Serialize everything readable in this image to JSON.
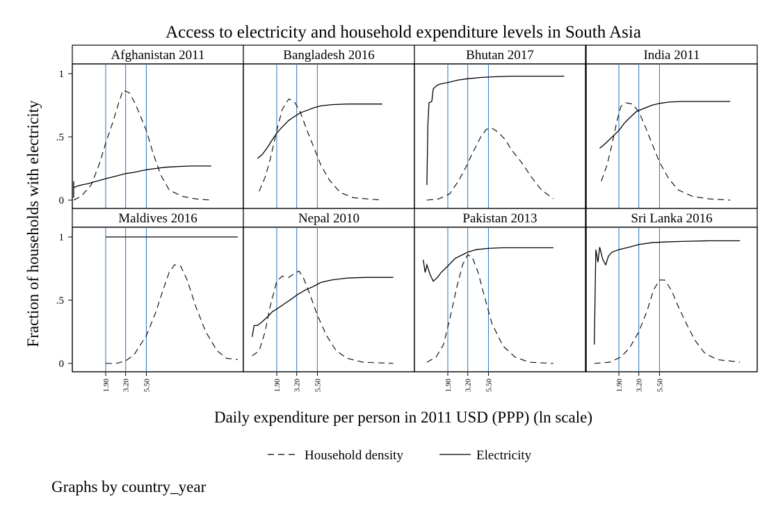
{
  "chart_data": {
    "type": "line",
    "title": "Access to electricity and household expenditure levels in South Asia",
    "xlabel": "Daily expenditure per person in 2011 USD (PPP) (ln scale)",
    "ylabel": "Fraction of households with electricity",
    "x_scale": "ln",
    "ylim": [
      0,
      1
    ],
    "y_ticks": [
      "0",
      ".5",
      "1"
    ],
    "x_ticks": [
      {
        "label": "1.90",
        "value": 1.9
      },
      {
        "label": "3.20",
        "value": 3.2
      },
      {
        "label": "5.50",
        "value": 5.5
      }
    ],
    "reference_lines_x": [
      1.9,
      3.2,
      5.5
    ],
    "reference_line_color": "#3a7fc1",
    "grid": false,
    "legend": {
      "placement": "bottom",
      "entries": [
        {
          "label": "Household density",
          "style": "dashed"
        },
        {
          "label": "Electricity",
          "style": "solid"
        }
      ]
    },
    "note": "Graphs by country_year",
    "panels": [
      {
        "name": "Afghanistan 2011",
        "electricity": [
          [
            0.7,
            0.02
          ],
          [
            0.72,
            0.15
          ],
          [
            0.76,
            0.07
          ],
          [
            0.8,
            0.1
          ],
          [
            0.9,
            0.11
          ],
          [
            1.0,
            0.12
          ],
          [
            1.2,
            0.13
          ],
          [
            1.5,
            0.15
          ],
          [
            1.9,
            0.17
          ],
          [
            2.5,
            0.19
          ],
          [
            3.2,
            0.21
          ],
          [
            4.0,
            0.22
          ],
          [
            5.5,
            0.24
          ],
          [
            7.0,
            0.25
          ],
          [
            9.0,
            0.26
          ],
          [
            12.0,
            0.265
          ],
          [
            18.0,
            0.27
          ],
          [
            25.0,
            0.27
          ],
          [
            30.0,
            0.27
          ]
        ],
        "density": [
          [
            0.7,
            0.0
          ],
          [
            1.0,
            0.03
          ],
          [
            1.3,
            0.12
          ],
          [
            1.6,
            0.28
          ],
          [
            1.9,
            0.45
          ],
          [
            2.3,
            0.62
          ],
          [
            2.7,
            0.78
          ],
          [
            3.0,
            0.87
          ],
          [
            3.5,
            0.85
          ],
          [
            4.0,
            0.78
          ],
          [
            4.5,
            0.7
          ],
          [
            5.5,
            0.55
          ],
          [
            6.5,
            0.38
          ],
          [
            8.0,
            0.2
          ],
          [
            10.0,
            0.08
          ],
          [
            14.0,
            0.03
          ],
          [
            20.0,
            0.01
          ],
          [
            30.0,
            0.0
          ]
        ]
      },
      {
        "name": "Bangladesh 2016",
        "electricity": [
          [
            1.15,
            0.33
          ],
          [
            1.3,
            0.36
          ],
          [
            1.5,
            0.42
          ],
          [
            1.7,
            0.48
          ],
          [
            1.9,
            0.53
          ],
          [
            2.2,
            0.58
          ],
          [
            2.6,
            0.63
          ],
          [
            3.0,
            0.66
          ],
          [
            3.5,
            0.69
          ],
          [
            4.2,
            0.71
          ],
          [
            5.0,
            0.73
          ],
          [
            6.0,
            0.745
          ],
          [
            8.0,
            0.755
          ],
          [
            12.0,
            0.76
          ],
          [
            20.0,
            0.76
          ],
          [
            30.0,
            0.76
          ]
        ],
        "density": [
          [
            1.2,
            0.07
          ],
          [
            1.4,
            0.18
          ],
          [
            1.6,
            0.32
          ],
          [
            1.9,
            0.55
          ],
          [
            2.2,
            0.72
          ],
          [
            2.6,
            0.8
          ],
          [
            3.0,
            0.78
          ],
          [
            3.5,
            0.7
          ],
          [
            4.2,
            0.55
          ],
          [
            5.0,
            0.42
          ],
          [
            6.0,
            0.28
          ],
          [
            7.5,
            0.16
          ],
          [
            10.0,
            0.06
          ],
          [
            14.0,
            0.02
          ],
          [
            20.0,
            0.01
          ],
          [
            30.0,
            0.0
          ]
        ]
      },
      {
        "name": "Bhutan 2017",
        "electricity": [
          [
            1.1,
            0.12
          ],
          [
            1.13,
            0.6
          ],
          [
            1.16,
            0.77
          ],
          [
            1.25,
            0.78
          ],
          [
            1.3,
            0.88
          ],
          [
            1.45,
            0.91
          ],
          [
            1.6,
            0.92
          ],
          [
            1.9,
            0.93
          ],
          [
            2.5,
            0.95
          ],
          [
            3.2,
            0.96
          ],
          [
            4.5,
            0.97
          ],
          [
            6.0,
            0.975
          ],
          [
            10.0,
            0.98
          ],
          [
            20.0,
            0.98
          ],
          [
            40.0,
            0.98
          ]
        ],
        "density": [
          [
            1.1,
            0.0
          ],
          [
            1.5,
            0.01
          ],
          [
            2.0,
            0.05
          ],
          [
            2.5,
            0.15
          ],
          [
            3.0,
            0.25
          ],
          [
            3.5,
            0.35
          ],
          [
            4.0,
            0.43
          ],
          [
            4.5,
            0.5
          ],
          [
            5.2,
            0.56
          ],
          [
            6.0,
            0.57
          ],
          [
            7.0,
            0.54
          ],
          [
            8.5,
            0.48
          ],
          [
            10.0,
            0.4
          ],
          [
            13.0,
            0.3
          ],
          [
            17.0,
            0.18
          ],
          [
            22.0,
            0.08
          ],
          [
            30.0,
            0.01
          ]
        ]
      },
      {
        "name": "India 2011",
        "electricity": [
          [
            1.15,
            0.41
          ],
          [
            1.3,
            0.44
          ],
          [
            1.6,
            0.5
          ],
          [
            1.9,
            0.55
          ],
          [
            2.2,
            0.61
          ],
          [
            2.6,
            0.66
          ],
          [
            3.0,
            0.7
          ],
          [
            3.5,
            0.72
          ],
          [
            4.5,
            0.75
          ],
          [
            5.5,
            0.765
          ],
          [
            7.0,
            0.775
          ],
          [
            10.0,
            0.78
          ],
          [
            20.0,
            0.78
          ],
          [
            35.0,
            0.78
          ]
        ],
        "density": [
          [
            1.2,
            0.15
          ],
          [
            1.4,
            0.28
          ],
          [
            1.6,
            0.45
          ],
          [
            1.8,
            0.62
          ],
          [
            2.0,
            0.74
          ],
          [
            2.3,
            0.77
          ],
          [
            2.7,
            0.76
          ],
          [
            3.2,
            0.7
          ],
          [
            3.8,
            0.58
          ],
          [
            4.5,
            0.45
          ],
          [
            5.5,
            0.3
          ],
          [
            7.0,
            0.17
          ],
          [
            9.0,
            0.08
          ],
          [
            13.0,
            0.03
          ],
          [
            20.0,
            0.01
          ],
          [
            35.0,
            0.0
          ]
        ]
      },
      {
        "name": "Maldives 2016",
        "electricity": [
          [
            1.9,
            1.0
          ],
          [
            5.0,
            1.0
          ],
          [
            20.0,
            1.0
          ],
          [
            60.0,
            1.0
          ]
        ],
        "density": [
          [
            1.9,
            0.0
          ],
          [
            2.5,
            0.0
          ],
          [
            3.2,
            0.02
          ],
          [
            4.0,
            0.07
          ],
          [
            5.5,
            0.22
          ],
          [
            7.0,
            0.4
          ],
          [
            8.5,
            0.58
          ],
          [
            10.0,
            0.72
          ],
          [
            11.5,
            0.78
          ],
          [
            13.5,
            0.77
          ],
          [
            16.0,
            0.66
          ],
          [
            20.0,
            0.45
          ],
          [
            26.0,
            0.25
          ],
          [
            35.0,
            0.1
          ],
          [
            45.0,
            0.04
          ],
          [
            60.0,
            0.03
          ]
        ]
      },
      {
        "name": "Nepal 2010",
        "electricity": [
          [
            1.0,
            0.21
          ],
          [
            1.05,
            0.3
          ],
          [
            1.15,
            0.3
          ],
          [
            1.3,
            0.33
          ],
          [
            1.5,
            0.37
          ],
          [
            1.7,
            0.41
          ],
          [
            1.9,
            0.43
          ],
          [
            2.3,
            0.47
          ],
          [
            2.8,
            0.51
          ],
          [
            3.2,
            0.54
          ],
          [
            4.0,
            0.58
          ],
          [
            5.0,
            0.61
          ],
          [
            6.0,
            0.64
          ],
          [
            8.0,
            0.66
          ],
          [
            12.0,
            0.675
          ],
          [
            20.0,
            0.68
          ],
          [
            40.0,
            0.68
          ]
        ],
        "density": [
          [
            1.0,
            0.06
          ],
          [
            1.2,
            0.1
          ],
          [
            1.4,
            0.25
          ],
          [
            1.6,
            0.45
          ],
          [
            1.9,
            0.65
          ],
          [
            2.2,
            0.69
          ],
          [
            2.6,
            0.68
          ],
          [
            3.0,
            0.71
          ],
          [
            3.4,
            0.73
          ],
          [
            3.8,
            0.68
          ],
          [
            4.5,
            0.55
          ],
          [
            5.5,
            0.38
          ],
          [
            7.0,
            0.22
          ],
          [
            9.0,
            0.1
          ],
          [
            12.0,
            0.04
          ],
          [
            18.0,
            0.01
          ],
          [
            40.0,
            0.0
          ]
        ]
      },
      {
        "name": "Pakistan 2013",
        "electricity": [
          [
            1.0,
            0.82
          ],
          [
            1.05,
            0.72
          ],
          [
            1.1,
            0.78
          ],
          [
            1.2,
            0.7
          ],
          [
            1.3,
            0.65
          ],
          [
            1.45,
            0.68
          ],
          [
            1.6,
            0.72
          ],
          [
            1.9,
            0.77
          ],
          [
            2.3,
            0.83
          ],
          [
            2.8,
            0.86
          ],
          [
            3.2,
            0.88
          ],
          [
            4.0,
            0.9
          ],
          [
            5.5,
            0.91
          ],
          [
            8.0,
            0.915
          ],
          [
            15.0,
            0.915
          ],
          [
            30.0,
            0.915
          ]
        ],
        "density": [
          [
            1.1,
            0.01
          ],
          [
            1.4,
            0.05
          ],
          [
            1.7,
            0.15
          ],
          [
            2.0,
            0.35
          ],
          [
            2.4,
            0.6
          ],
          [
            2.8,
            0.78
          ],
          [
            3.2,
            0.86
          ],
          [
            3.6,
            0.84
          ],
          [
            4.2,
            0.72
          ],
          [
            5.0,
            0.52
          ],
          [
            6.0,
            0.32
          ],
          [
            8.0,
            0.14
          ],
          [
            11.0,
            0.05
          ],
          [
            16.0,
            0.01
          ],
          [
            30.0,
            0.0
          ]
        ]
      },
      {
        "name": "Sri Lanka 2016",
        "electricity": [
          [
            1.0,
            0.15
          ],
          [
            1.04,
            0.9
          ],
          [
            1.1,
            0.8
          ],
          [
            1.15,
            0.92
          ],
          [
            1.25,
            0.82
          ],
          [
            1.35,
            0.78
          ],
          [
            1.45,
            0.85
          ],
          [
            1.6,
            0.88
          ],
          [
            1.9,
            0.9
          ],
          [
            2.5,
            0.92
          ],
          [
            3.2,
            0.94
          ],
          [
            4.5,
            0.955
          ],
          [
            6.0,
            0.96
          ],
          [
            10.0,
            0.965
          ],
          [
            20.0,
            0.97
          ],
          [
            45.0,
            0.97
          ]
        ],
        "density": [
          [
            1.0,
            0.0
          ],
          [
            1.5,
            0.01
          ],
          [
            2.0,
            0.05
          ],
          [
            2.5,
            0.12
          ],
          [
            3.2,
            0.25
          ],
          [
            4.0,
            0.42
          ],
          [
            4.7,
            0.58
          ],
          [
            5.5,
            0.66
          ],
          [
            6.3,
            0.66
          ],
          [
            7.5,
            0.58
          ],
          [
            9.0,
            0.45
          ],
          [
            11.0,
            0.32
          ],
          [
            14.0,
            0.18
          ],
          [
            18.0,
            0.08
          ],
          [
            25.0,
            0.03
          ],
          [
            45.0,
            0.01
          ]
        ]
      }
    ]
  }
}
